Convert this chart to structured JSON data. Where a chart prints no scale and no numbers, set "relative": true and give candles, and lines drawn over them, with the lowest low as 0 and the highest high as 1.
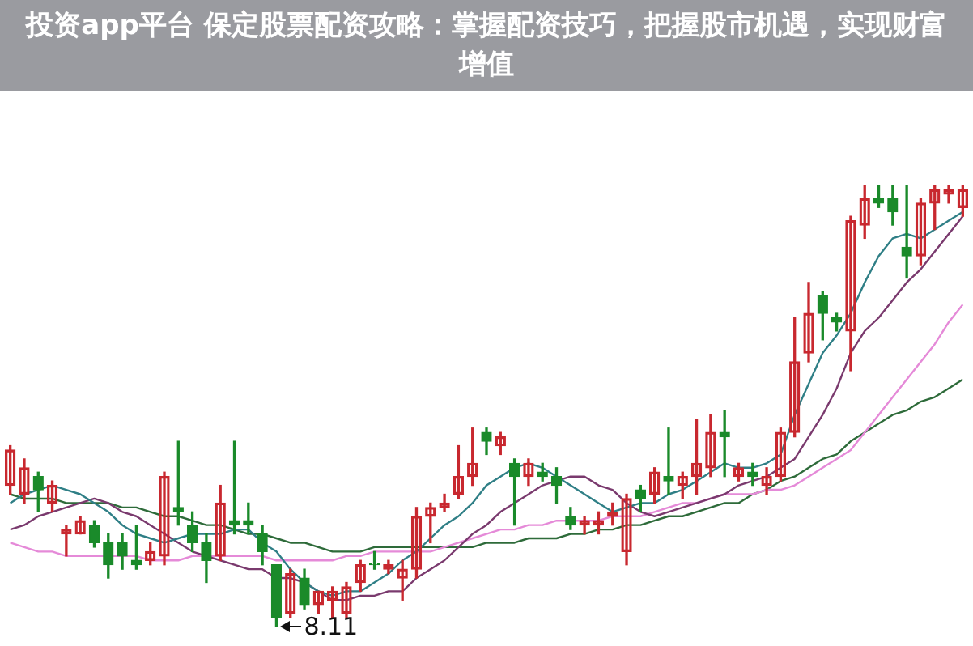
{
  "chart_data": {
    "type": "candlestick",
    "relative": true,
    "title": "投资app平台 保定股票配资攻略：掌握配资技巧，把握股市机遇，实现财富增值",
    "categories": [
      null,
      null,
      null,
      null,
      null,
      null,
      null,
      null,
      null,
      null,
      null,
      null,
      null,
      null,
      null,
      null,
      null,
      null,
      null,
      null,
      null,
      null,
      null,
      null,
      null,
      null,
      null,
      null,
      null,
      null,
      null,
      null,
      null,
      null,
      null,
      null,
      null,
      null,
      null,
      null,
      null,
      null,
      null,
      null,
      null,
      null,
      null,
      null,
      null,
      null,
      null,
      null,
      null,
      null,
      null,
      null,
      null,
      null,
      null,
      null,
      null,
      null,
      null,
      null,
      null,
      null,
      null,
      null,
      null
    ],
    "ohlc": [
      [
        0.32,
        0.41,
        0.3,
        0.4
      ],
      [
        0.3,
        0.38,
        0.28,
        0.36
      ],
      [
        0.34,
        0.35,
        0.26,
        0.31
      ],
      [
        0.28,
        0.33,
        0.26,
        0.32
      ],
      [
        0.21,
        0.23,
        0.16,
        0.22
      ],
      [
        0.21,
        0.25,
        0.21,
        0.24
      ],
      [
        0.23,
        0.24,
        0.18,
        0.19
      ],
      [
        0.19,
        0.21,
        0.11,
        0.14
      ],
      [
        0.19,
        0.21,
        0.13,
        0.16
      ],
      [
        0.15,
        0.23,
        0.13,
        0.14
      ],
      [
        0.15,
        0.19,
        0.14,
        0.17
      ],
      [
        0.16,
        0.35,
        0.14,
        0.34
      ],
      [
        0.27,
        0.42,
        0.23,
        0.26
      ],
      [
        0.23,
        0.26,
        0.17,
        0.19
      ],
      [
        0.19,
        0.21,
        0.1,
        0.15
      ],
      [
        0.16,
        0.32,
        0.15,
        0.28
      ],
      [
        0.24,
        0.42,
        0.21,
        0.23
      ],
      [
        0.24,
        0.28,
        0.21,
        0.23
      ],
      [
        0.21,
        0.23,
        0.14,
        0.17
      ],
      [
        0.14,
        0.14,
        0.0,
        0.02
      ],
      [
        0.03,
        0.13,
        0.02,
        0.12
      ],
      [
        0.11,
        0.13,
        0.04,
        0.05
      ],
      [
        0.05,
        0.08,
        0.03,
        0.08
      ],
      [
        0.06,
        0.09,
        0.02,
        0.08
      ],
      [
        0.03,
        0.1,
        0.02,
        0.09
      ],
      [
        0.1,
        0.15,
        0.08,
        0.14
      ],
      [
        0.14,
        0.17,
        0.13,
        0.14
      ],
      [
        0.13,
        0.15,
        0.12,
        0.14
      ],
      [
        0.11,
        0.15,
        0.06,
        0.13
      ],
      [
        0.13,
        0.27,
        0.11,
        0.25
      ],
      [
        0.25,
        0.28,
        0.19,
        0.27
      ],
      [
        0.27,
        0.3,
        0.26,
        0.28
      ],
      [
        0.3,
        0.41,
        0.29,
        0.34
      ],
      [
        0.34,
        0.45,
        0.32,
        0.37
      ],
      [
        0.44,
        0.45,
        0.39,
        0.42
      ],
      [
        0.41,
        0.44,
        0.39,
        0.43
      ],
      [
        0.37,
        0.38,
        0.23,
        0.34
      ],
      [
        0.34,
        0.38,
        0.32,
        0.37
      ],
      [
        0.35,
        0.37,
        0.33,
        0.34
      ],
      [
        0.34,
        0.36,
        0.28,
        0.32
      ],
      [
        0.25,
        0.27,
        0.22,
        0.23
      ],
      [
        0.23,
        0.25,
        0.21,
        0.24
      ],
      [
        0.23,
        0.26,
        0.21,
        0.24
      ],
      [
        0.25,
        0.28,
        0.23,
        0.26
      ],
      [
        0.17,
        0.3,
        0.14,
        0.29
      ],
      [
        0.31,
        0.32,
        0.26,
        0.29
      ],
      [
        0.3,
        0.36,
        0.28,
        0.35
      ],
      [
        0.34,
        0.45,
        0.3,
        0.33
      ],
      [
        0.32,
        0.35,
        0.29,
        0.34
      ],
      [
        0.34,
        0.47,
        0.3,
        0.37
      ],
      [
        0.36,
        0.48,
        0.34,
        0.44
      ],
      [
        0.44,
        0.49,
        0.34,
        0.43
      ],
      [
        0.34,
        0.37,
        0.33,
        0.36
      ],
      [
        0.35,
        0.37,
        0.32,
        0.34
      ],
      [
        0.32,
        0.36,
        0.3,
        0.34
      ],
      [
        0.34,
        0.45,
        0.33,
        0.44
      ],
      [
        0.44,
        0.7,
        0.43,
        0.6
      ],
      [
        0.62,
        0.78,
        0.6,
        0.71
      ],
      [
        0.75,
        0.76,
        0.65,
        0.71
      ],
      [
        0.7,
        0.71,
        0.67,
        0.69
      ],
      [
        0.67,
        0.93,
        0.58,
        0.92
      ],
      [
        0.91,
        1.0,
        0.88,
        0.97
      ],
      [
        0.97,
        1.0,
        0.95,
        0.96
      ],
      [
        0.97,
        1.0,
        0.91,
        0.94
      ],
      [
        0.86,
        1.0,
        0.79,
        0.84
      ],
      [
        0.84,
        0.97,
        0.82,
        0.96
      ],
      [
        0.96,
        1.0,
        0.9,
        0.99
      ],
      [
        0.98,
        1.0,
        0.96,
        0.99
      ],
      [
        0.95,
        1.0,
        0.93,
        0.99
      ]
    ],
    "colors": [
      "#c8282f",
      "#c8282f",
      "#1a8a2a",
      "#c8282f",
      "#c8282f",
      "#c8282f",
      "#1a8a2a",
      "#1a8a2a",
      "#1a8a2a",
      "#1a8a2a",
      "#c8282f",
      "#c8282f",
      "#1a8a2a",
      "#1a8a2a",
      "#1a8a2a",
      "#c8282f",
      "#1a8a2a",
      "#1a8a2a",
      "#1a8a2a",
      "#1a8a2a",
      "#c8282f",
      "#1a8a2a",
      "#c8282f",
      "#c8282f",
      "#c8282f",
      "#c8282f",
      "#1a8a2a",
      "#c8282f",
      "#c8282f",
      "#c8282f",
      "#c8282f",
      "#c8282f",
      "#c8282f",
      "#c8282f",
      "#1a8a2a",
      "#c8282f",
      "#1a8a2a",
      "#c8282f",
      "#1a8a2a",
      "#1a8a2a",
      "#1a8a2a",
      "#c8282f",
      "#c8282f",
      "#c8282f",
      "#c8282f",
      "#1a8a2a",
      "#c8282f",
      "#1a8a2a",
      "#c8282f",
      "#c8282f",
      "#c8282f",
      "#1a8a2a",
      "#c8282f",
      "#1a8a2a",
      "#c8282f",
      "#c8282f",
      "#c8282f",
      "#c8282f",
      "#1a8a2a",
      "#1a8a2a",
      "#c8282f",
      "#c8282f",
      "#1a8a2a",
      "#1a8a2a",
      "#1a8a2a",
      "#c8282f",
      "#c8282f",
      "#c8282f",
      "#c8282f"
    ],
    "series": [
      {
        "type": "line",
        "color": "#2f7f86",
        "values": [
          0.28,
          0.3,
          0.31,
          0.32,
          0.31,
          0.3,
          0.28,
          0.26,
          0.23,
          0.21,
          0.2,
          0.19,
          0.2,
          0.21,
          0.21,
          0.21,
          0.22,
          0.22,
          0.19,
          0.17,
          0.13,
          0.1,
          0.08,
          0.07,
          0.08,
          0.08,
          0.1,
          0.12,
          0.15,
          0.17,
          0.2,
          0.23,
          0.25,
          0.28,
          0.32,
          0.34,
          0.36,
          0.37,
          0.36,
          0.34,
          0.32,
          0.3,
          0.28,
          0.26,
          0.27,
          0.28,
          0.28,
          0.3,
          0.31,
          0.33,
          0.35,
          0.37,
          0.36,
          0.36,
          0.37,
          0.39,
          0.48,
          0.55,
          0.62,
          0.66,
          0.71,
          0.78,
          0.84,
          0.88,
          0.89,
          0.88,
          0.9,
          0.92,
          0.94
        ]
      },
      {
        "type": "line",
        "color": "#7a3a6e",
        "values": [
          0.22,
          0.23,
          0.25,
          0.26,
          0.27,
          0.28,
          0.29,
          0.28,
          0.26,
          0.25,
          0.23,
          0.21,
          0.19,
          0.17,
          0.16,
          0.15,
          0.14,
          0.13,
          0.13,
          0.11,
          0.11,
          0.1,
          0.08,
          0.06,
          0.06,
          0.07,
          0.07,
          0.08,
          0.08,
          0.11,
          0.13,
          0.15,
          0.18,
          0.21,
          0.23,
          0.26,
          0.28,
          0.3,
          0.32,
          0.33,
          0.34,
          0.34,
          0.32,
          0.31,
          0.28,
          0.26,
          0.25,
          0.26,
          0.27,
          0.28,
          0.29,
          0.3,
          0.32,
          0.33,
          0.34,
          0.36,
          0.38,
          0.43,
          0.48,
          0.54,
          0.62,
          0.67,
          0.7,
          0.74,
          0.78,
          0.81,
          0.85,
          0.89,
          0.93
        ]
      },
      {
        "type": "line",
        "color": "#e58ad8",
        "values": [
          0.19,
          0.18,
          0.17,
          0.17,
          0.16,
          0.16,
          0.16,
          0.16,
          0.16,
          0.16,
          0.15,
          0.15,
          0.15,
          0.16,
          0.16,
          0.16,
          0.16,
          0.16,
          0.16,
          0.15,
          0.15,
          0.15,
          0.15,
          0.15,
          0.16,
          0.16,
          0.17,
          0.17,
          0.17,
          0.17,
          0.17,
          0.18,
          0.19,
          0.2,
          0.21,
          0.22,
          0.22,
          0.23,
          0.23,
          0.24,
          0.24,
          0.24,
          0.24,
          0.25,
          0.25,
          0.25,
          0.26,
          0.27,
          0.28,
          0.28,
          0.29,
          0.3,
          0.3,
          0.3,
          0.31,
          0.31,
          0.32,
          0.34,
          0.36,
          0.38,
          0.4,
          0.44,
          0.48,
          0.52,
          0.56,
          0.6,
          0.64,
          0.69,
          0.73
        ]
      },
      {
        "type": "line",
        "color": "#2e6b3a",
        "values": [
          0.3,
          0.29,
          0.29,
          0.29,
          0.28,
          0.28,
          0.28,
          0.28,
          0.27,
          0.27,
          0.26,
          0.25,
          0.25,
          0.24,
          0.23,
          0.23,
          0.22,
          0.21,
          0.21,
          0.2,
          0.19,
          0.19,
          0.18,
          0.17,
          0.17,
          0.17,
          0.18,
          0.18,
          0.18,
          0.18,
          0.18,
          0.18,
          0.18,
          0.18,
          0.19,
          0.19,
          0.19,
          0.2,
          0.2,
          0.2,
          0.21,
          0.21,
          0.22,
          0.22,
          0.23,
          0.23,
          0.24,
          0.25,
          0.25,
          0.26,
          0.27,
          0.28,
          0.28,
          0.3,
          0.31,
          0.33,
          0.34,
          0.36,
          0.38,
          0.39,
          0.42,
          0.44,
          0.46,
          0.48,
          0.49,
          0.51,
          0.52,
          0.54,
          0.56
        ]
      }
    ],
    "annotations": [
      "8.11"
    ]
  }
}
